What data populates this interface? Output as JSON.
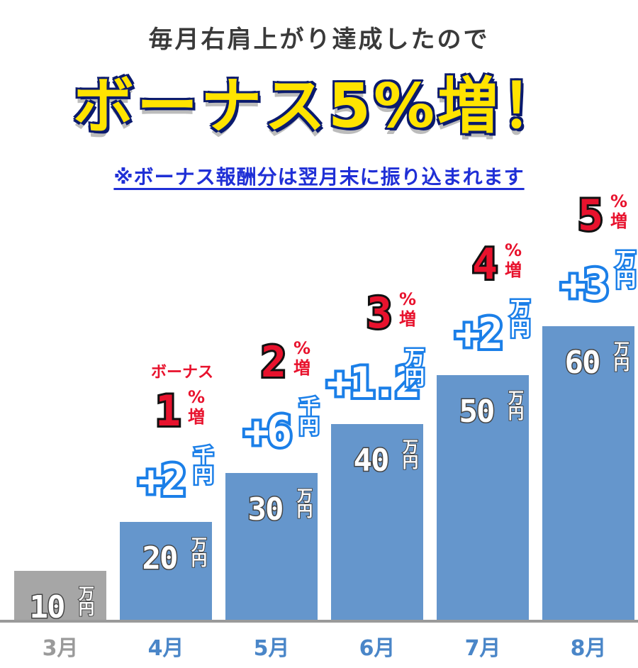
{
  "header": {
    "subtitle": "毎月右肩上がり達成したので",
    "headline": "ボーナス5%増！",
    "note": "※ボーナス報酬分は翌月末に振り込まれます"
  },
  "colors": {
    "bar_base": "#a6a6a6",
    "bar_growth": "#6596cc",
    "increase_outline": "#1b7fe8",
    "bonus_red": "#e8122d",
    "month_base": "#9a9a9a",
    "month_growth": "#4a86c8",
    "axis": "#9a9a9a"
  },
  "chart_data": {
    "type": "bar",
    "categories": [
      "3月",
      "4月",
      "5月",
      "6月",
      "7月",
      "8月"
    ],
    "values": [
      10,
      20,
      30,
      40,
      50,
      60
    ],
    "value_unit": "万円",
    "value_labels": [
      "10",
      "20",
      "30",
      "40",
      "50",
      "60"
    ],
    "increase_labels": [
      null,
      {
        "value": "+2",
        "unit": "千円"
      },
      {
        "value": "+6",
        "unit": "千円"
      },
      {
        "value": "+1.2",
        "unit": "万円"
      },
      {
        "value": "+2",
        "unit": "万円"
      },
      {
        "value": "+3",
        "unit": "万円"
      }
    ],
    "bonus_labels": [
      null,
      {
        "value": "1",
        "suffix_top": "%",
        "suffix_bottom": "増",
        "prefix": "ボーナス"
      },
      {
        "value": "2",
        "suffix_top": "%",
        "suffix_bottom": "増"
      },
      {
        "value": "3",
        "suffix_top": "%",
        "suffix_bottom": "増"
      },
      {
        "value": "4",
        "suffix_top": "%",
        "suffix_bottom": "増"
      },
      {
        "value": "5",
        "suffix_top": "%",
        "suffix_bottom": "増"
      }
    ],
    "ylim": [
      0,
      60
    ],
    "grid": false,
    "legend": "none"
  }
}
